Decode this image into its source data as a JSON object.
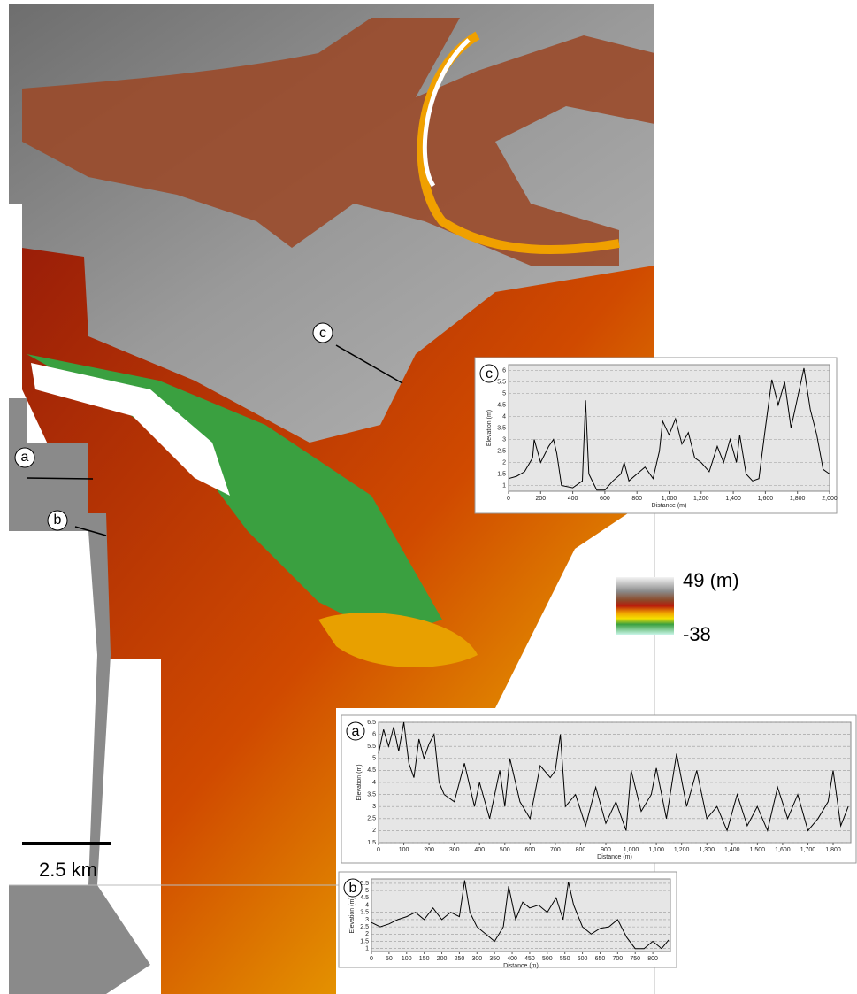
{
  "map": {
    "scale_bar": "2.5 km",
    "legend": {
      "max": "49 (m)",
      "min": "-38"
    }
  },
  "chart_data": [
    {
      "type": "line",
      "label": "c",
      "x_label": "Distance (m)",
      "y_label": "Elevation (m)",
      "color": "#000000",
      "grid": true,
      "x": [
        0,
        50,
        100,
        150,
        160,
        200,
        250,
        280,
        300,
        330,
        400,
        460,
        480,
        500,
        550,
        600,
        650,
        700,
        720,
        750,
        800,
        850,
        900,
        940,
        960,
        1000,
        1040,
        1080,
        1120,
        1160,
        1200,
        1250,
        1300,
        1340,
        1380,
        1420,
        1440,
        1480,
        1520,
        1560,
        1600,
        1640,
        1680,
        1720,
        1760,
        1800,
        1840,
        1880,
        1920,
        1960,
        2000
      ],
      "values": [
        1.3,
        1.4,
        1.6,
        2.2,
        3.0,
        2.0,
        2.7,
        3.0,
        2.4,
        1.0,
        0.9,
        1.2,
        4.7,
        1.5,
        0.8,
        0.8,
        1.2,
        1.5,
        2.0,
        1.2,
        1.5,
        1.8,
        1.3,
        2.5,
        3.8,
        3.2,
        3.9,
        2.8,
        3.3,
        2.2,
        2.0,
        1.6,
        2.7,
        2.0,
        3.0,
        2.0,
        3.2,
        1.5,
        1.2,
        1.3,
        3.5,
        5.6,
        4.5,
        5.5,
        3.5,
        4.8,
        6.1,
        4.3,
        3.2,
        1.7,
        1.5
      ],
      "xlim": [
        0,
        2000
      ],
      "ylim": [
        0.75,
        6.25
      ],
      "xticks": [
        0,
        200,
        400,
        600,
        800,
        {
          "value": 1000,
          "label": "1,000"
        },
        {
          "value": 1200,
          "label": "1,200"
        },
        {
          "value": 1400,
          "label": "1,400"
        },
        {
          "value": 1600,
          "label": "1,600"
        },
        {
          "value": 1800,
          "label": "1,800"
        },
        {
          "value": 2000,
          "label": "2,000"
        }
      ],
      "yticks": [
        1,
        1.5,
        2,
        2.5,
        3,
        3.5,
        4,
        4.5,
        5,
        5.5,
        6
      ]
    },
    {
      "type": "line",
      "label": "a",
      "x_label": "Distance (m)",
      "y_label": "Elevation (m)",
      "color": "#000000",
      "grid": true,
      "x": [
        0,
        20,
        40,
        60,
        80,
        100,
        120,
        140,
        160,
        180,
        200,
        220,
        240,
        260,
        300,
        340,
        380,
        400,
        440,
        480,
        500,
        520,
        560,
        600,
        640,
        680,
        700,
        720,
        740,
        780,
        820,
        860,
        900,
        940,
        980,
        1000,
        1040,
        1080,
        1100,
        1140,
        1180,
        1220,
        1260,
        1300,
        1340,
        1380,
        1420,
        1460,
        1500,
        1540,
        1580,
        1620,
        1660,
        1700,
        1740,
        1780,
        1800,
        1830,
        1860
      ],
      "values": [
        5.2,
        6.2,
        5.5,
        6.3,
        5.3,
        6.5,
        4.8,
        4.2,
        5.8,
        5.0,
        5.6,
        6.0,
        4.0,
        3.5,
        3.2,
        4.8,
        3.0,
        4.0,
        2.5,
        4.5,
        3.0,
        5.0,
        3.2,
        2.5,
        4.7,
        4.2,
        4.5,
        6.0,
        3.0,
        3.5,
        2.2,
        3.8,
        2.3,
        3.2,
        2.0,
        4.5,
        2.8,
        3.5,
        4.6,
        2.5,
        5.2,
        3.0,
        4.5,
        2.5,
        3.0,
        2.0,
        3.5,
        2.2,
        3.0,
        2.0,
        3.8,
        2.5,
        3.5,
        2.0,
        2.5,
        3.2,
        4.5,
        2.2,
        3.0
      ],
      "xlim": [
        0,
        1870
      ],
      "ylim": [
        1.5,
        6.5
      ],
      "xticks": [
        0,
        100,
        200,
        300,
        400,
        500,
        600,
        700,
        800,
        900,
        {
          "value": 1000,
          "label": "1,000"
        },
        {
          "value": 1100,
          "label": "1,100"
        },
        {
          "value": 1200,
          "label": "1,200"
        },
        {
          "value": 1300,
          "label": "1,300"
        },
        {
          "value": 1400,
          "label": "1,400"
        },
        {
          "value": 1500,
          "label": "1,500"
        },
        {
          "value": 1600,
          "label": "1,600"
        },
        {
          "value": 1700,
          "label": "1,700"
        },
        {
          "value": 1800,
          "label": "1,800"
        }
      ],
      "yticks": [
        1.5,
        2,
        2.5,
        3,
        3.5,
        4,
        4.5,
        5,
        5.5,
        6,
        6.5
      ]
    },
    {
      "type": "line",
      "label": "b",
      "x_label": "Distance (m)",
      "y_label": "Elevation (m)",
      "color": "#000000",
      "grid": true,
      "x": [
        0,
        25,
        50,
        75,
        100,
        125,
        150,
        175,
        200,
        225,
        250,
        265,
        280,
        300,
        325,
        350,
        375,
        390,
        410,
        430,
        450,
        475,
        500,
        525,
        545,
        560,
        575,
        600,
        625,
        650,
        675,
        700,
        725,
        750,
        775,
        800,
        825,
        845
      ],
      "values": [
        2.8,
        2.5,
        2.7,
        3.0,
        3.2,
        3.5,
        3.0,
        3.8,
        3.0,
        3.5,
        3.2,
        5.7,
        3.5,
        2.5,
        2.0,
        1.5,
        2.5,
        5.3,
        3.0,
        4.2,
        3.8,
        4.0,
        3.5,
        4.5,
        3.0,
        5.6,
        4.0,
        2.5,
        2.0,
        2.4,
        2.5,
        3.0,
        1.8,
        1.0,
        1.0,
        1.5,
        1.0,
        1.6
      ],
      "xlim": [
        0,
        850
      ],
      "ylim": [
        0.8,
        5.8
      ],
      "xticks": [
        0,
        50,
        100,
        150,
        200,
        250,
        300,
        350,
        400,
        450,
        500,
        550,
        600,
        650,
        700,
        750,
        800
      ],
      "yticks": [
        1,
        1.5,
        2,
        2.5,
        3,
        3.5,
        4,
        4.5,
        5,
        5.5
      ]
    }
  ]
}
